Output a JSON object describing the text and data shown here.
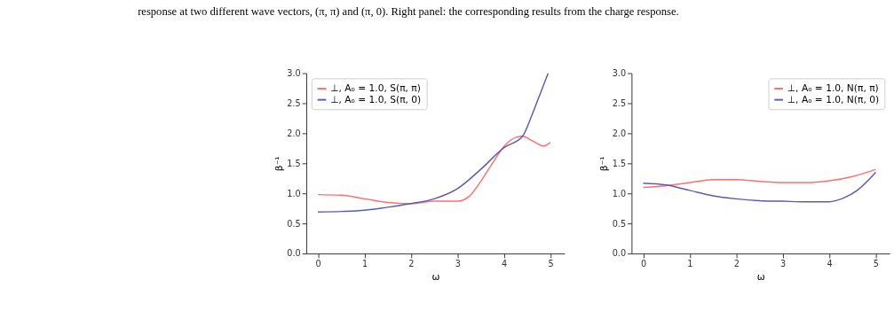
{
  "chart_data": [
    {
      "type": "line",
      "xlabel": "ω",
      "ylabel": "β⁻¹",
      "xlim": [
        -0.25,
        5.3
      ],
      "ylim": [
        0,
        3
      ],
      "xticks": [
        0,
        1,
        2,
        3,
        4,
        5
      ],
      "yticks": [
        {
          "value": 0,
          "label": "0.0"
        },
        0.5,
        {
          "value": 1,
          "label": "1.0"
        },
        1.5,
        {
          "value": 2,
          "label": "2.0"
        },
        2.5,
        {
          "value": 3,
          "label": "3.0"
        }
      ],
      "grid": false,
      "legend": "top left",
      "annotations": [
        "response at two different wave vectors, (π, π) and (π, 0). Right panel: the corresponding results from the charge response."
      ],
      "series": [
        {
          "name": "⊥, A₀ = 1.0, S(π, π)",
          "color": "#ff6f6f",
          "x": [
            0,
            0.5,
            1,
            1.5,
            2,
            2.5,
            3,
            3.25,
            3.5,
            3.75,
            4,
            4.25,
            4.4,
            4.6,
            4.85,
            5
          ],
          "values": [
            0.98,
            0.97,
            0.91,
            0.85,
            0.83,
            0.87,
            0.87,
            0.95,
            1.2,
            1.5,
            1.78,
            1.93,
            1.95,
            1.88,
            1.79,
            1.85
          ]
        },
        {
          "name": "⊥, A₀ = 1.0, S(π, 0)",
          "color": "#5b5baf",
          "x": [
            0,
            0.5,
            1,
            1.5,
            2,
            2.5,
            3,
            3.5,
            4,
            4.4,
            4.6,
            4.8,
            4.95
          ],
          "values": [
            0.69,
            0.7,
            0.72,
            0.77,
            0.83,
            0.91,
            1.08,
            1.4,
            1.76,
            1.95,
            2.3,
            2.7,
            3.0
          ]
        }
      ]
    },
    {
      "type": "line",
      "xlabel": "ω",
      "ylabel": "β⁻¹",
      "xlim": [
        -0.25,
        5.3
      ],
      "ylim": [
        0,
        3
      ],
      "xticks": [
        0,
        1,
        2,
        3,
        4,
        5
      ],
      "yticks": [
        {
          "value": 0,
          "label": "0.0"
        },
        0.5,
        {
          "value": 1,
          "label": "1.0"
        },
        1.5,
        {
          "value": 2,
          "label": "2.0"
        },
        2.5,
        {
          "value": 3,
          "label": "3.0"
        }
      ],
      "grid": false,
      "legend": "top right",
      "series": [
        {
          "name": "⊥, A₀ = 1.0, N(π, π)",
          "color": "#ff6f6f",
          "x": [
            0,
            0.5,
            1,
            1.5,
            2,
            2.5,
            3,
            3.5,
            4,
            4.5,
            5
          ],
          "values": [
            1.1,
            1.13,
            1.18,
            1.23,
            1.23,
            1.2,
            1.18,
            1.18,
            1.21,
            1.28,
            1.4
          ]
        },
        {
          "name": "⊥, A₀ = 1.0, N(π, 0)",
          "color": "#5b5baf",
          "x": [
            0,
            0.5,
            1,
            1.5,
            2,
            2.5,
            3,
            3.5,
            4,
            4.3,
            4.6,
            5
          ],
          "values": [
            1.17,
            1.14,
            1.05,
            0.96,
            0.91,
            0.88,
            0.87,
            0.86,
            0.86,
            0.92,
            1.05,
            1.35
          ]
        }
      ]
    }
  ]
}
